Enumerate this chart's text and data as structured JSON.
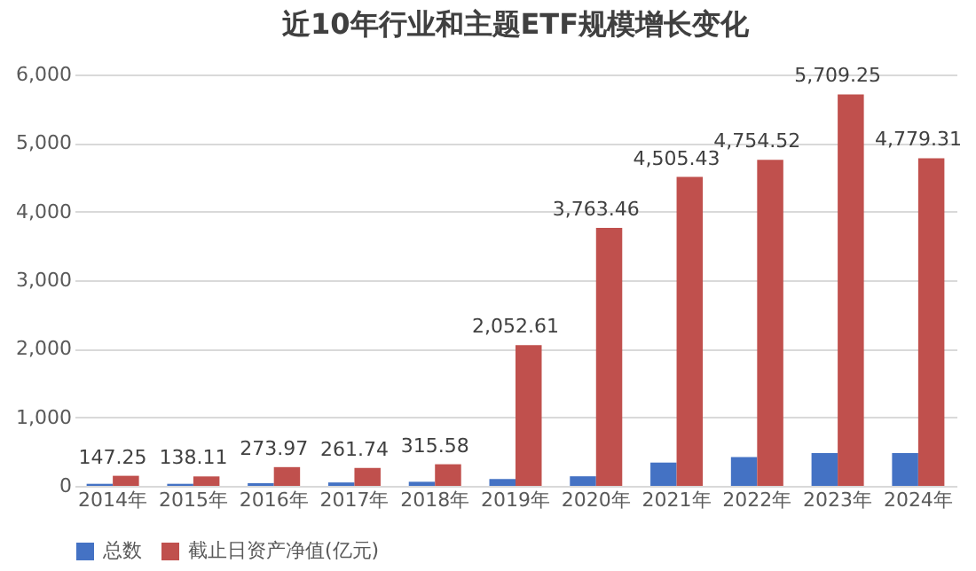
{
  "chart_data": {
    "type": "bar",
    "title": "近10年行业和主题ETF规模增长变化",
    "categories": [
      "2014年",
      "2015年",
      "2016年",
      "2017年",
      "2018年",
      "2019年",
      "2020年",
      "2021年",
      "2022年",
      "2023年",
      "2024年"
    ],
    "series": [
      {
        "name": "总数",
        "color": "#4472c4",
        "values": [
          30,
          30,
          40,
          50,
          60,
          100,
          140,
          340,
          420,
          480,
          480
        ]
      },
      {
        "name": "截止日资产净值(亿元)",
        "color": "#c0504d",
        "values": [
          147.25,
          138.11,
          273.97,
          261.74,
          315.58,
          2052.61,
          3763.46,
          4505.43,
          4754.52,
          5709.25,
          4779.31
        ],
        "value_labels": [
          "147.25",
          "138.11",
          "273.97",
          "261.74",
          "315.58",
          "2,052.61",
          "3,763.46",
          "4,505.43",
          "4,754.52",
          "5,709.25",
          "4,779.31"
        ]
      }
    ],
    "ylim": [
      0,
      6000
    ],
    "yticks": [
      {
        "value": 0,
        "label": "0"
      },
      {
        "value": 1000,
        "label": "1,000"
      },
      {
        "value": 2000,
        "label": "2,000"
      },
      {
        "value": 3000,
        "label": "3,000"
      },
      {
        "value": 4000,
        "label": "4,000"
      },
      {
        "value": 5000,
        "label": "5,000"
      },
      {
        "value": 6000,
        "label": "6,000"
      }
    ],
    "grid": "y",
    "legend": "bottom"
  }
}
